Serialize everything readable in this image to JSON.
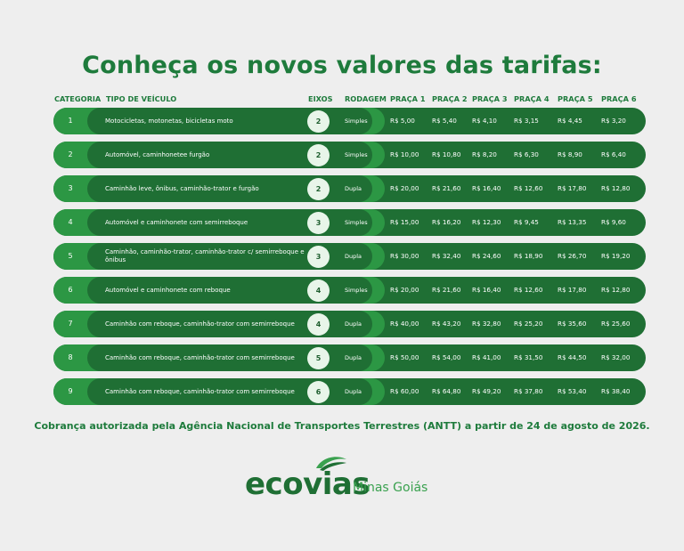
{
  "title": "Conheça os novos valores das tarifas:",
  "headers": {
    "categoria": "CATEGORIA",
    "tipo": "TIPO DE VEÍCULO",
    "eixos": "EIXOS",
    "rodagem": "RODAGEM",
    "praca1": "PRAÇA 1",
    "praca2": "PRAÇA 2",
    "praca3": "PRAÇA 3",
    "praca4": "PRAÇA 4",
    "praca5": "PRAÇA 5",
    "praca6": "PRAÇA 6"
  },
  "rows": [
    {
      "cat": "1",
      "tipo": "Motocicletas, motonetas, bicicletas moto",
      "eixos": "2",
      "rodagem": "Simples",
      "p": [
        "R$ 5,00",
        "R$ 5,40",
        "R$ 4,10",
        "R$ 3,15",
        "R$ 4,45",
        "R$ 3,20"
      ]
    },
    {
      "cat": "2",
      "tipo": "Automóvel, caminhonetee furgão",
      "eixos": "2",
      "rodagem": "Simples",
      "p": [
        "R$ 10,00",
        "R$ 10,80",
        "R$ 8,20",
        "R$ 6,30",
        "R$ 8,90",
        "R$ 6,40"
      ]
    },
    {
      "cat": "3",
      "tipo": "Caminhão leve, ônibus, caminhão-trator e furgão",
      "eixos": "2",
      "rodagem": "Dupla",
      "p": [
        "R$ 20,00",
        "R$ 21,60",
        "R$ 16,40",
        "R$ 12,60",
        "R$ 17,80",
        "R$ 12,80"
      ]
    },
    {
      "cat": "4",
      "tipo": "Automóvel e caminhonete com semirreboque",
      "eixos": "3",
      "rodagem": "Simples",
      "p": [
        "R$ 15,00",
        "R$ 16,20",
        "R$ 12,30",
        "R$ 9,45",
        "R$ 13,35",
        "R$ 9,60"
      ]
    },
    {
      "cat": "5",
      "tipo": "Caminhão, caminhão-trator, caminhão-trator c/ semirreboque e ônibus",
      "eixos": "3",
      "rodagem": "Dupla",
      "p": [
        "R$ 30,00",
        "R$ 32,40",
        "R$ 24,60",
        "R$ 18,90",
        "R$ 26,70",
        "R$ 19,20"
      ]
    },
    {
      "cat": "6",
      "tipo": "Automóvel e caminhonete  com reboque",
      "eixos": "4",
      "rodagem": "Simples",
      "p": [
        "R$ 20,00",
        "R$ 21,60",
        "R$ 16,40",
        "R$ 12,60",
        "R$ 17,80",
        "R$ 12,80"
      ]
    },
    {
      "cat": "7",
      "tipo": "Caminhão com reboque, caminhão-trator com semirreboque",
      "eixos": "4",
      "rodagem": "Dupla",
      "p": [
        "R$ 40,00",
        "R$ 43,20",
        "R$ 32,80",
        "R$ 25,20",
        "R$ 35,60",
        "R$ 25,60"
      ]
    },
    {
      "cat": "8",
      "tipo": "Caminhão com reboque, caminhão-trator com semirreboque",
      "eixos": "5",
      "rodagem": "Dupla",
      "p": [
        "R$ 50,00",
        "R$ 54,00",
        "R$ 41,00",
        "R$ 31,50",
        "R$ 44,50",
        "R$ 32,00"
      ]
    },
    {
      "cat": "9",
      "tipo": "Caminhão com reboque, caminhão-trator com semirreboque",
      "eixos": "6",
      "rodagem": "Dupla",
      "p": [
        "R$ 60,00",
        "R$ 64,80",
        "R$ 49,20",
        "R$ 37,80",
        "R$ 53,40",
        "R$ 38,40"
      ]
    }
  ],
  "footer": "Cobrança autorizada pela Agência Nacional de Transportes Terrestres (ANTT) a partir de 24 de agosto de 2026.",
  "logo": {
    "brand": "ecovias",
    "region": "Minas Goiás"
  },
  "colors": {
    "dark_green": "#1f6f34",
    "light_green": "#2c9744",
    "title_green": "#1e7b3c",
    "background": "#eeeeee"
  }
}
